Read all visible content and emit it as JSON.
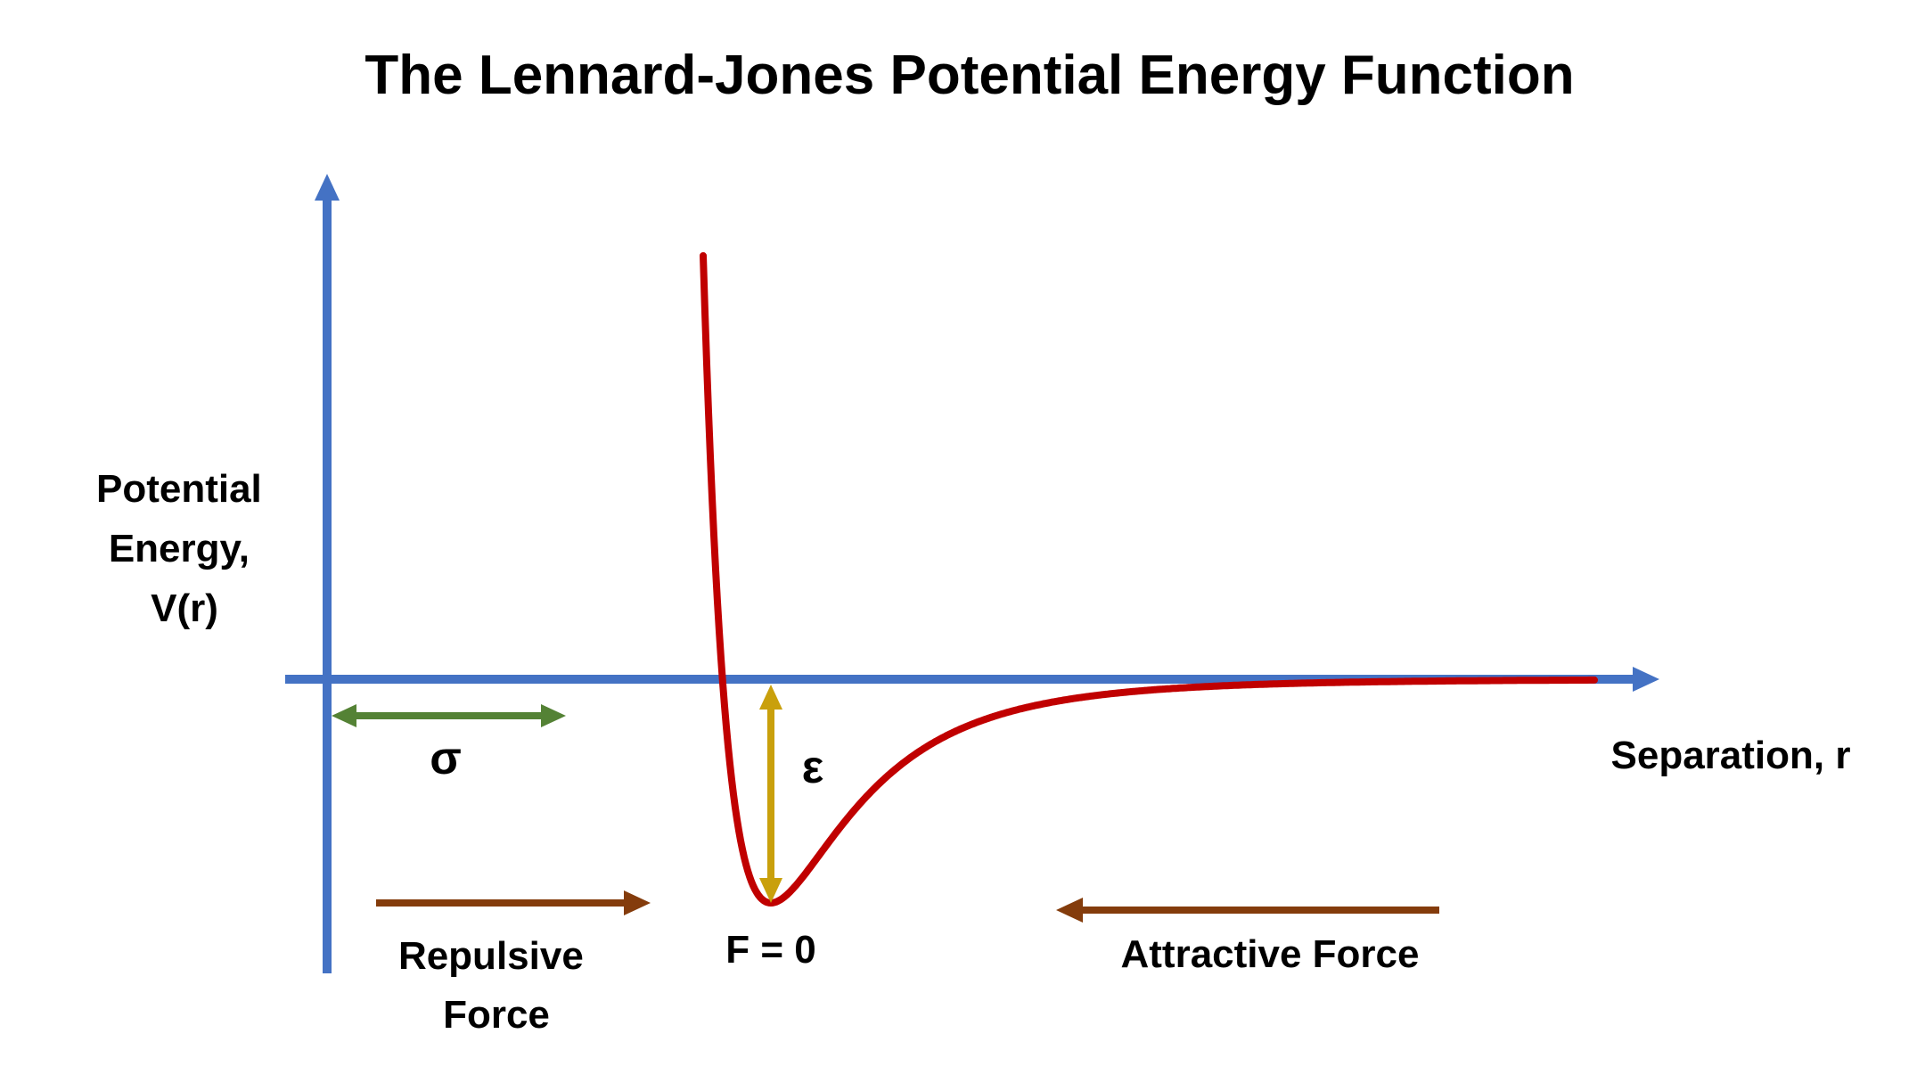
{
  "title": "The Lennard-Jones Potential Energy Function",
  "y_axis_label": [
    "Potential",
    "Energy,",
    "V(r)"
  ],
  "x_axis_label": "Separation, r",
  "sigma_label": "σ",
  "epsilon_label": "ε",
  "equilibrium_label": "F = 0",
  "repulsive_label": [
    "Repulsive",
    "Force"
  ],
  "attractive_label": "Attractive Force",
  "colors": {
    "axis": "#4472c4",
    "curve": "#c00000",
    "sigma_arrow": "#548235",
    "epsilon_arrow": "#c9a00c",
    "force_arrow": "#843c0c",
    "text": "#000000"
  },
  "icons": {
    "y_axis_head": "arrow-up",
    "x_axis_head": "arrow-right",
    "sigma": "double-arrow-horizontal",
    "epsilon": "double-arrow-vertical",
    "repulsive": "arrow-right",
    "attractive": "arrow-left"
  }
}
